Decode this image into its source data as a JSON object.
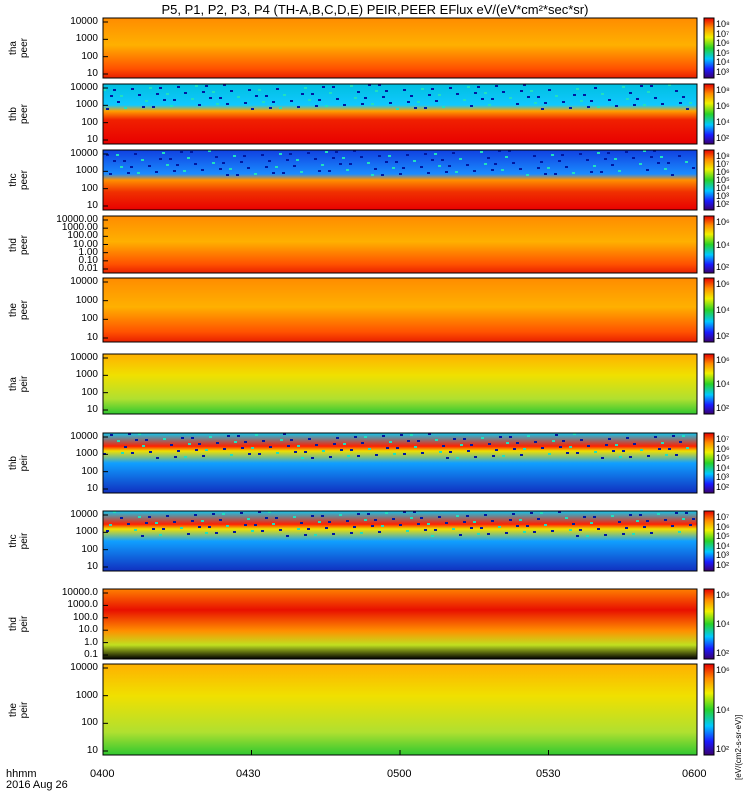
{
  "title": "P5, P1, P2, P3, P4 (TH-A,B,C,D,E) PEIR,PEER EFlux eV/(eV*cm²*sec*sr)",
  "time_axis": {
    "ticks": [
      "0400",
      "0430",
      "0500",
      "0530",
      "0600"
    ],
    "label_line1": "hhmm",
    "label_line2": "2016 Aug 26"
  },
  "colorbar_unit_label": "[eV/(cm2-s-sr-eV)]",
  "chart_data": [
    {
      "type": "heatmap",
      "probe": "tha",
      "species": "peer",
      "ylabel": [
        "tha",
        "peer"
      ],
      "yticks": [
        "10000",
        "1000",
        "100",
        "10"
      ],
      "cbar_ticks": [
        "10⁸",
        "10⁷",
        "10⁶",
        "10⁵",
        "10⁴",
        "10³"
      ]
    },
    {
      "type": "heatmap",
      "probe": "thb",
      "species": "peer",
      "ylabel": [
        "thb",
        "peer"
      ],
      "yticks": [
        "10000",
        "1000",
        "100",
        "10"
      ],
      "cbar_ticks": [
        "10⁸",
        "10⁶",
        "10⁴",
        "10²"
      ]
    },
    {
      "type": "heatmap",
      "probe": "thc",
      "species": "peer",
      "ylabel": [
        "thc",
        "peer"
      ],
      "yticks": [
        "10000",
        "1000",
        "100",
        "10"
      ],
      "cbar_ticks": [
        "10⁸",
        "10⁷",
        "10⁶",
        "10⁵",
        "10⁴",
        "10³",
        "10²"
      ]
    },
    {
      "type": "heatmap",
      "probe": "thd",
      "species": "peer",
      "ylabel": [
        "thd",
        "peer"
      ],
      "yticks": [
        "10000.00",
        "1000.00",
        "100.00",
        "10.00",
        "1.00",
        "0.10",
        "0.01"
      ],
      "cbar_ticks": [
        "10⁶",
        "10⁴",
        "10²"
      ]
    },
    {
      "type": "heatmap",
      "probe": "the",
      "species": "peer",
      "ylabel": [
        "the",
        "peer"
      ],
      "yticks": [
        "10000",
        "1000",
        "100",
        "10"
      ],
      "cbar_ticks": [
        "10⁶",
        "10⁴",
        "10²"
      ]
    },
    {
      "type": "heatmap",
      "probe": "tha",
      "species": "peir",
      "ylabel": [
        "tha",
        "peir"
      ],
      "yticks": [
        "10000",
        "1000",
        "100",
        "10"
      ],
      "cbar_ticks": [
        "10⁶",
        "10⁴",
        "10²"
      ]
    },
    {
      "type": "heatmap",
      "probe": "thb",
      "species": "peir",
      "ylabel": [
        "thb",
        "peir"
      ],
      "yticks": [
        "10000",
        "1000",
        "100",
        "10"
      ],
      "cbar_ticks": [
        "10⁷",
        "10⁶",
        "10⁵",
        "10⁴",
        "10³",
        "10²"
      ]
    },
    {
      "type": "heatmap",
      "probe": "thc",
      "species": "peir",
      "ylabel": [
        "thc",
        "peir"
      ],
      "yticks": [
        "10000",
        "1000",
        "100",
        "10"
      ],
      "cbar_ticks": [
        "10⁷",
        "10⁶",
        "10⁵",
        "10⁴",
        "10³",
        "10²"
      ]
    },
    {
      "type": "heatmap",
      "probe": "thd",
      "species": "peir",
      "ylabel": [
        "thd",
        "peir"
      ],
      "yticks": [
        "10000.0",
        "1000.0",
        "100.0",
        "10.0",
        "1.0",
        "0.1"
      ],
      "cbar_ticks": [
        "10⁶",
        "10⁴",
        "10²"
      ]
    },
    {
      "type": "heatmap",
      "probe": "the",
      "species": "peir",
      "ylabel": [
        "the",
        "peir"
      ],
      "yticks": [
        "10000",
        "1000",
        "100",
        "10"
      ],
      "cbar_ticks": [
        "10⁶",
        "10⁴",
        "10²"
      ]
    }
  ]
}
